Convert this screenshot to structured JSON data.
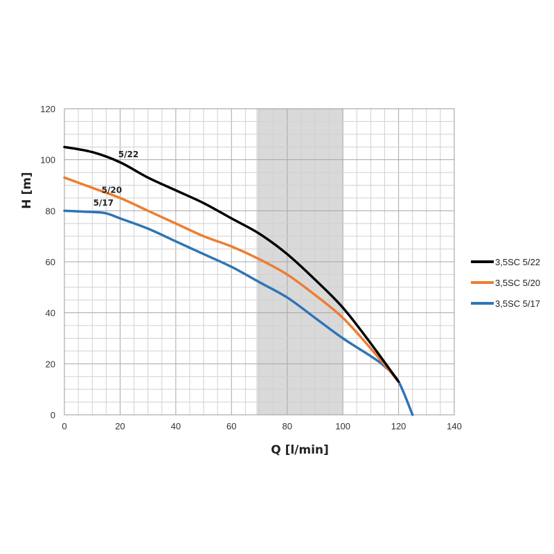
{
  "chart_data": {
    "type": "line",
    "xlabel": "Q [l/min]",
    "ylabel": "H [m]",
    "xlim": [
      0,
      140
    ],
    "ylim": [
      0,
      120
    ],
    "x_ticks": [
      0,
      20,
      40,
      60,
      80,
      100,
      120,
      140
    ],
    "y_ticks": [
      0,
      20,
      40,
      60,
      80,
      100,
      120
    ],
    "x_minor_step": 5,
    "y_minor_step": 5,
    "grid": true,
    "shaded_region": {
      "x_from": 69,
      "x_to": 100,
      "color": "#d9d9d9"
    },
    "legend_position": "right",
    "series": [
      {
        "name": "3,5SC 5/22",
        "curve_label": "5/22",
        "color": "#000000",
        "x": [
          0,
          10,
          20,
          30,
          40,
          50,
          60,
          70,
          80,
          90,
          100,
          110,
          120
        ],
        "y": [
          105,
          103,
          99,
          93,
          88,
          83,
          77,
          71,
          63,
          53,
          42,
          28,
          13
        ]
      },
      {
        "name": "3,5SC 5/20",
        "curve_label": "5/20",
        "color": "#ed7d31",
        "x": [
          0,
          10,
          20,
          30,
          40,
          50,
          60,
          70,
          80,
          90,
          100,
          110,
          120
        ],
        "y": [
          93,
          89,
          85,
          80,
          75,
          70,
          66,
          61,
          55,
          47,
          38,
          26,
          13
        ]
      },
      {
        "name": "3,5SC 5/17",
        "curve_label": "5/17",
        "color": "#2e75b6",
        "x": [
          0,
          10,
          15,
          20,
          30,
          40,
          50,
          60,
          70,
          80,
          90,
          100,
          110,
          115,
          120,
          125
        ],
        "y": [
          80,
          79.5,
          79,
          77,
          73,
          68,
          63,
          58,
          52,
          46,
          38,
          30,
          23,
          19,
          13,
          0
        ]
      }
    ]
  }
}
